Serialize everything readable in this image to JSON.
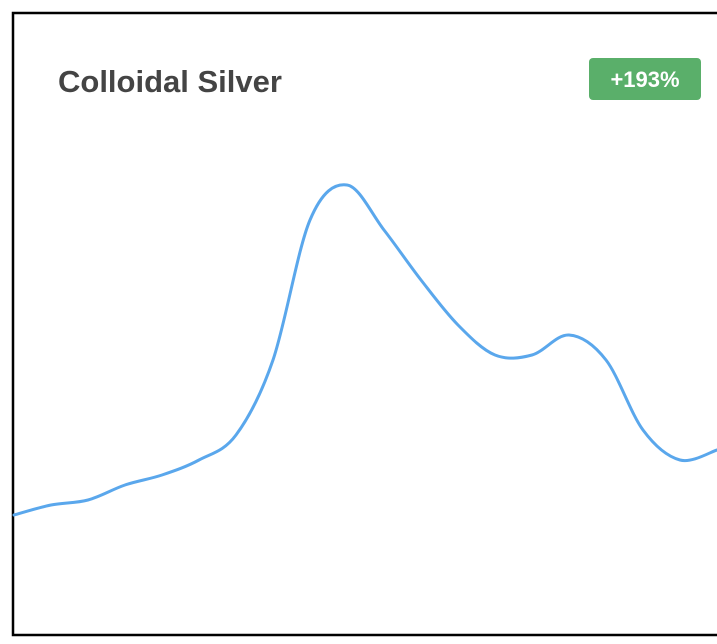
{
  "chart_data": {
    "type": "line",
    "title": "Colloidal Silver",
    "badge": "+193%",
    "values": [
      25,
      27,
      28,
      31,
      33,
      36,
      41,
      56,
      84,
      91,
      82,
      72,
      63,
      57,
      57,
      61,
      56,
      42,
      36,
      38
    ],
    "color": "#5aa7ec",
    "badge_color": "#5aaf6a",
    "ylim": [
      0,
      100
    ]
  }
}
